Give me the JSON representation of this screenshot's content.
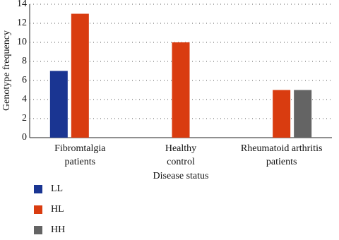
{
  "chart_data": {
    "type": "bar",
    "x_label": "Disease status",
    "y_label": "Genotype frequency",
    "categories": [
      "Fibromtalgia patients",
      "Healthy control",
      "Rheumatoid arthritis patients"
    ],
    "series": [
      {
        "name": "LL",
        "color": "#1a3592",
        "values": [
          7,
          0,
          0
        ]
      },
      {
        "name": "HL",
        "color": "#d93c10",
        "values": [
          13,
          10,
          5
        ]
      },
      {
        "name": "HH",
        "color": "#646464",
        "values": [
          0,
          0,
          5
        ]
      }
    ],
    "ylim": [
      0,
      14
    ],
    "yticks": [
      0,
      2,
      4,
      6,
      8,
      10,
      12,
      14
    ],
    "grid": true
  }
}
